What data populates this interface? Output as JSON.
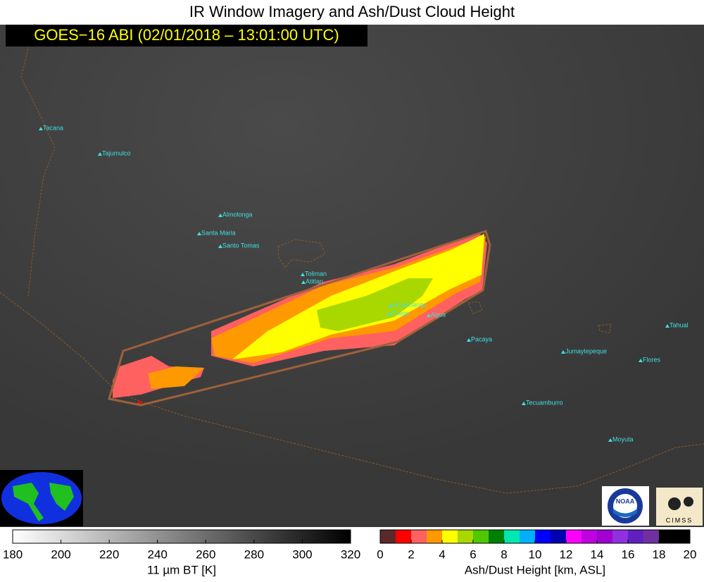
{
  "header": {
    "title": "IR Window Imagery and Ash/Dust Cloud Height",
    "subtitle": "GOES−16 ABI (02/01/2018 – 13:01:00 UTC)"
  },
  "map": {
    "volcanoes": [
      "Tacana",
      "Tajumulco",
      "Almolonga",
      "Santa Maria",
      "Santo Tomas",
      "Toliman",
      "Atitlan",
      "Acatenango",
      "Fuego",
      "Agua",
      "Pacaya",
      "Jumaytepeque",
      "Tahual",
      "Flores",
      "Tecuamburro",
      "Moyuta"
    ]
  },
  "colorbars": [
    {
      "label": "11 µm BT [K]",
      "range": [
        180,
        320
      ],
      "ticks": [
        180,
        200,
        220,
        240,
        260,
        280,
        300,
        320
      ],
      "colors": [
        "#ffffff",
        "#000000"
      ]
    },
    {
      "label": "Ash/Dust Height [km, ASL]",
      "range": [
        0,
        20
      ],
      "ticks": [
        0,
        2,
        4,
        6,
        8,
        10,
        12,
        14,
        16,
        18,
        20
      ],
      "colors": [
        "#5a2a2a",
        "#ff0000",
        "#ff6060",
        "#ff9900",
        "#ffff00",
        "#a8d800",
        "#50c800",
        "#008000",
        "#00e8b0",
        "#00b0ff",
        "#0000ff",
        "#0000b0",
        "#ff00ff",
        "#c000e0",
        "#a000d0",
        "#9030e0",
        "#6020c0",
        "#7030a0",
        "#000000",
        "#000000"
      ]
    }
  ],
  "logos": {
    "noaa": "NOAA",
    "cimss": "CIMSS"
  }
}
